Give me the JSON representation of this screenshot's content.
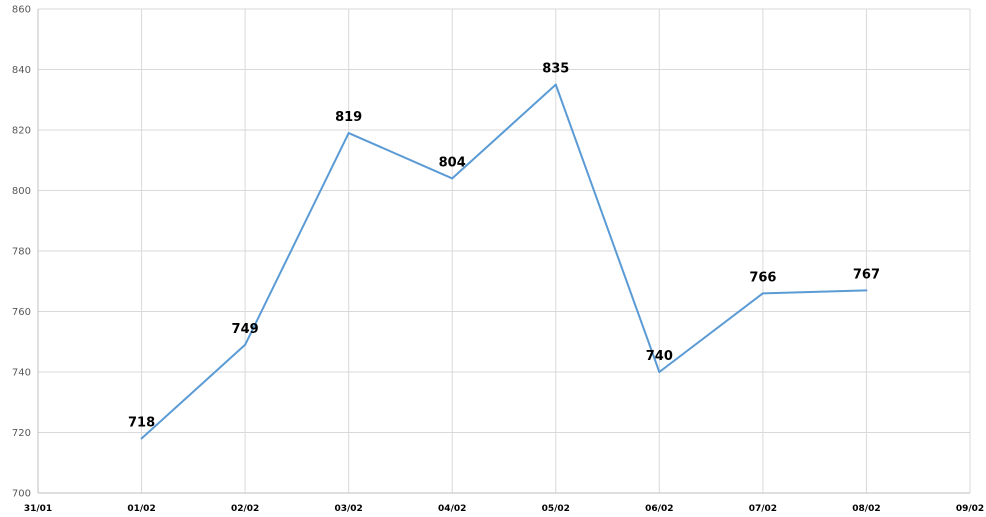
{
  "chart_data": {
    "type": "line",
    "title": "",
    "xlabel": "",
    "ylabel": "",
    "x": [
      "31/01",
      "01/02",
      "02/02",
      "03/02",
      "04/02",
      "05/02",
      "06/02",
      "07/02",
      "08/02",
      "09/02"
    ],
    "series": [
      {
        "points": [
          {
            "x": "01/02",
            "y": 718
          },
          {
            "x": "02/02",
            "y": 749
          },
          {
            "x": "03/02",
            "y": 819
          },
          {
            "x": "04/02",
            "y": 804
          },
          {
            "x": "05/02",
            "y": 835
          },
          {
            "x": "06/02",
            "y": 740
          },
          {
            "x": "07/02",
            "y": 766
          },
          {
            "x": "08/02",
            "y": 767
          }
        ],
        "color": "#5b9bd5"
      }
    ],
    "ylim": [
      700,
      860
    ],
    "yticks": [
      700,
      720,
      740,
      760,
      780,
      800,
      820,
      840,
      860
    ],
    "grid": true,
    "legend": "none",
    "data_labels": true
  }
}
